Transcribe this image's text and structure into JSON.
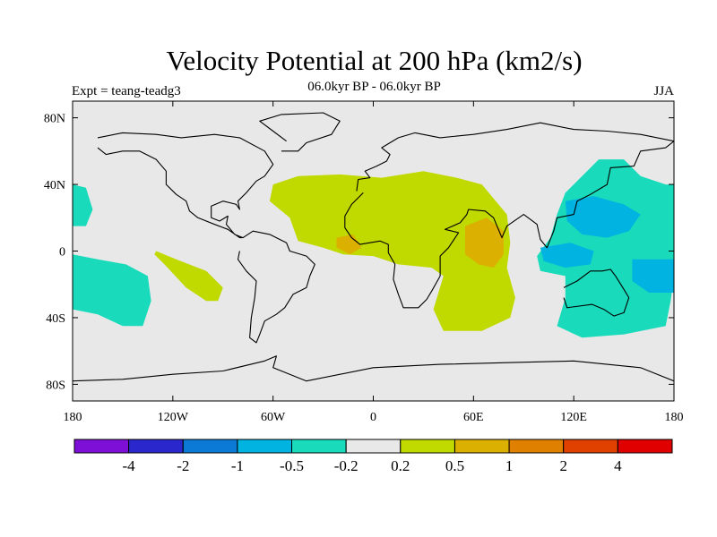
{
  "header": {
    "title": "Velocity Potential at 200 hPa (km2/s)",
    "subtitle": "06.0kyr BP - 06.0kyr BP",
    "experiment": "Expt = teang-teadg3",
    "season": "JJA"
  },
  "chart_data": {
    "type": "contour-map",
    "title": "Velocity Potential at 200 hPa (km2/s)",
    "subtitle": "06.0kyr BP - 06.0kyr BP",
    "xlim": [
      -180,
      180
    ],
    "ylim": [
      -90,
      90
    ],
    "x_ticks": [
      {
        "value": -180,
        "label": "180"
      },
      {
        "value": -120,
        "label": "120W"
      },
      {
        "value": -60,
        "label": "60W"
      },
      {
        "value": 0,
        "label": "0"
      },
      {
        "value": 60,
        "label": "60E"
      },
      {
        "value": 120,
        "label": "120E"
      },
      {
        "value": 180,
        "label": "180"
      }
    ],
    "y_ticks": [
      {
        "value": 80,
        "label": "80N"
      },
      {
        "value": 40,
        "label": "40N"
      },
      {
        "value": 0,
        "label": "0"
      },
      {
        "value": -40,
        "label": "40S"
      },
      {
        "value": -80,
        "label": "80S"
      }
    ],
    "colorbar": {
      "colors": [
        "#7d0fd6",
        "#2a28cc",
        "#0a7ad6",
        "#00b3e0",
        "#19dbbb",
        "#e8e8e8",
        "#c0da00",
        "#dcb000",
        "#e08000",
        "#e04000",
        "#e00000"
      ],
      "labels": [
        "-4",
        "-2",
        "-1",
        "-0.5",
        "-0.2",
        "0.2",
        "0.5",
        "1",
        "2",
        "4"
      ]
    },
    "regions": [
      {
        "level": "0.2 to 0.5",
        "color": "#c0da00",
        "points": [
          [
            -60,
            40
          ],
          [
            -45,
            45
          ],
          [
            -20,
            46
          ],
          [
            5,
            44
          ],
          [
            30,
            48
          ],
          [
            50,
            44
          ],
          [
            65,
            40
          ],
          [
            80,
            22
          ],
          [
            82,
            5
          ],
          [
            80,
            -10
          ],
          [
            85,
            -28
          ],
          [
            82,
            -40
          ],
          [
            65,
            -48
          ],
          [
            42,
            -48
          ],
          [
            36,
            -35
          ],
          [
            42,
            -15
          ],
          [
            35,
            -10
          ],
          [
            15,
            -8
          ],
          [
            0,
            -3
          ],
          [
            -18,
            -2
          ],
          [
            -30,
            2
          ],
          [
            -45,
            6
          ],
          [
            -50,
            20
          ],
          [
            -62,
            30
          ]
        ]
      },
      {
        "level": "0.2 to 0.5",
        "color": "#c0da00",
        "points": [
          [
            -130,
            0
          ],
          [
            -118,
            -5
          ],
          [
            -100,
            -12
          ],
          [
            -90,
            -22
          ],
          [
            -93,
            -30
          ],
          [
            -100,
            -30
          ],
          [
            -112,
            -22
          ],
          [
            -125,
            -8
          ],
          [
            -131,
            -2
          ]
        ]
      },
      {
        "level": "0.5 to 1",
        "color": "#dcb000",
        "points": [
          [
            55,
            15
          ],
          [
            68,
            20
          ],
          [
            78,
            12
          ],
          [
            78,
            -2
          ],
          [
            72,
            -10
          ],
          [
            63,
            -8
          ],
          [
            55,
            -2
          ],
          [
            55,
            8
          ]
        ]
      },
      {
        "level": "0.5 to 1",
        "color": "#dcb000",
        "points": [
          [
            -22,
            8
          ],
          [
            -12,
            10
          ],
          [
            -7,
            2
          ],
          [
            -14,
            -2
          ],
          [
            -22,
            2
          ]
        ]
      },
      {
        "level": "-0.5 to -0.2",
        "color": "#19dbbb",
        "points": [
          [
            -180,
            -2
          ],
          [
            -165,
            -5
          ],
          [
            -148,
            -8
          ],
          [
            -135,
            -15
          ],
          [
            -133,
            -30
          ],
          [
            -138,
            -45
          ],
          [
            -150,
            -45
          ],
          [
            -165,
            -38
          ],
          [
            -180,
            -35
          ]
        ]
      },
      {
        "level": "-0.5 to -0.2",
        "color": "#19dbbb",
        "points": [
          [
            -180,
            40
          ],
          [
            -172,
            38
          ],
          [
            -168,
            25
          ],
          [
            -172,
            15
          ],
          [
            -180,
            15
          ]
        ]
      },
      {
        "level": "-0.5 to -0.2",
        "color": "#19dbbb",
        "points": [
          [
            135,
            55
          ],
          [
            150,
            55
          ],
          [
            160,
            45
          ],
          [
            175,
            40
          ],
          [
            180,
            40
          ],
          [
            180,
            -15
          ],
          [
            178,
            -30
          ],
          [
            175,
            -45
          ],
          [
            150,
            -50
          ],
          [
            125,
            -52
          ],
          [
            110,
            -45
          ],
          [
            115,
            -28
          ],
          [
            115,
            -15
          ],
          [
            100,
            -12
          ],
          [
            98,
            -3
          ],
          [
            106,
            8
          ],
          [
            110,
            22
          ],
          [
            115,
            35
          ],
          [
            125,
            45
          ]
        ]
      },
      {
        "level": "-1 to -0.5",
        "color": "#00b3e0",
        "points": [
          [
            115,
            30
          ],
          [
            132,
            33
          ],
          [
            150,
            28
          ],
          [
            160,
            22
          ],
          [
            153,
            12
          ],
          [
            140,
            8
          ],
          [
            125,
            10
          ],
          [
            116,
            18
          ]
        ]
      },
      {
        "level": "-1 to -0.5",
        "color": "#00b3e0",
        "points": [
          [
            100,
            2
          ],
          [
            118,
            5
          ],
          [
            132,
            0
          ],
          [
            130,
            -8
          ],
          [
            115,
            -10
          ],
          [
            102,
            -6
          ]
        ]
      },
      {
        "level": "-1 to -0.5",
        "color": "#00b3e0",
        "points": [
          [
            155,
            -5
          ],
          [
            180,
            -5
          ],
          [
            180,
            -25
          ],
          [
            165,
            -25
          ],
          [
            155,
            -18
          ]
        ]
      }
    ],
    "coastlines": [
      {
        "name": "north-america",
        "points": [
          [
            -165,
            68
          ],
          [
            -150,
            71
          ],
          [
            -130,
            70
          ],
          [
            -115,
            68
          ],
          [
            -95,
            70
          ],
          [
            -80,
            68
          ],
          [
            -65,
            60
          ],
          [
            -60,
            52
          ],
          [
            -65,
            45
          ],
          [
            -70,
            42
          ],
          [
            -76,
            35
          ],
          [
            -81,
            30
          ],
          [
            -80,
            25
          ],
          [
            -82,
            28
          ],
          [
            -90,
            30
          ],
          [
            -97,
            27
          ],
          [
            -97,
            20
          ],
          [
            -92,
            18
          ],
          [
            -87,
            21
          ],
          [
            -88,
            16
          ],
          [
            -83,
            10
          ],
          [
            -78,
            8
          ],
          [
            -80,
            8
          ],
          [
            -87,
            13
          ],
          [
            -95,
            16
          ],
          [
            -105,
            20
          ],
          [
            -110,
            24
          ],
          [
            -112,
            30
          ],
          [
            -118,
            34
          ],
          [
            -124,
            40
          ],
          [
            -124,
            48
          ],
          [
            -130,
            55
          ],
          [
            -140,
            60
          ],
          [
            -150,
            60
          ],
          [
            -160,
            58
          ],
          [
            -165,
            62
          ]
        ]
      },
      {
        "name": "greenland",
        "points": [
          [
            -55,
            60
          ],
          [
            -45,
            60
          ],
          [
            -40,
            65
          ],
          [
            -25,
            70
          ],
          [
            -20,
            78
          ],
          [
            -30,
            83
          ],
          [
            -55,
            82
          ],
          [
            -68,
            78
          ],
          [
            -60,
            72
          ],
          [
            -52,
            66
          ]
        ]
      },
      {
        "name": "south-america",
        "points": [
          [
            -78,
            8
          ],
          [
            -72,
            12
          ],
          [
            -62,
            10
          ],
          [
            -52,
            5
          ],
          [
            -50,
            0
          ],
          [
            -40,
            -3
          ],
          [
            -35,
            -8
          ],
          [
            -38,
            -15
          ],
          [
            -40,
            -22
          ],
          [
            -48,
            -26
          ],
          [
            -53,
            -34
          ],
          [
            -58,
            -38
          ],
          [
            -65,
            -42
          ],
          [
            -68,
            -50
          ],
          [
            -70,
            -55
          ],
          [
            -74,
            -52
          ],
          [
            -73,
            -40
          ],
          [
            -71,
            -28
          ],
          [
            -70,
            -18
          ],
          [
            -76,
            -12
          ],
          [
            -81,
            -5
          ],
          [
            -80,
            0
          ]
        ]
      },
      {
        "name": "eurasia-africa",
        "points": [
          [
            -10,
            36
          ],
          [
            -9,
            43
          ],
          [
            -2,
            44
          ],
          [
            -5,
            48
          ],
          [
            2,
            51
          ],
          [
            8,
            54
          ],
          [
            10,
            58
          ],
          [
            5,
            62
          ],
          [
            15,
            68
          ],
          [
            25,
            71
          ],
          [
            40,
            68
          ],
          [
            60,
            70
          ],
          [
            80,
            73
          ],
          [
            100,
            77
          ],
          [
            120,
            73
          ],
          [
            140,
            72
          ],
          [
            160,
            70
          ],
          [
            180,
            66
          ],
          [
            175,
            62
          ],
          [
            160,
            60
          ],
          [
            156,
            51
          ],
          [
            142,
            50
          ],
          [
            140,
            40
          ],
          [
            130,
            34
          ],
          [
            122,
            30
          ],
          [
            120,
            22
          ],
          [
            110,
            20
          ],
          [
            108,
            12
          ],
          [
            104,
            2
          ],
          [
            100,
            7
          ],
          [
            98,
            16
          ],
          [
            90,
            22
          ],
          [
            80,
            15
          ],
          [
            77,
            8
          ],
          [
            72,
            20
          ],
          [
            67,
            24
          ],
          [
            57,
            25
          ],
          [
            56,
            22
          ],
          [
            52,
            17
          ],
          [
            43,
            13
          ],
          [
            51,
            11
          ],
          [
            45,
            2
          ],
          [
            40,
            -3
          ],
          [
            40,
            -15
          ],
          [
            35,
            -24
          ],
          [
            32,
            -29
          ],
          [
            27,
            -34
          ],
          [
            18,
            -34
          ],
          [
            15,
            -26
          ],
          [
            12,
            -17
          ],
          [
            13,
            -8
          ],
          [
            9,
            -1
          ],
          [
            9,
            4
          ],
          [
            4,
            6
          ],
          [
            -8,
            4
          ],
          [
            -13,
            8
          ],
          [
            -17,
            14
          ],
          [
            -17,
            21
          ],
          [
            -13,
            28
          ],
          [
            -6,
            35
          ]
        ]
      },
      {
        "name": "australia",
        "points": [
          [
            114,
            -22
          ],
          [
            122,
            -18
          ],
          [
            130,
            -12
          ],
          [
            137,
            -12
          ],
          [
            142,
            -11
          ],
          [
            145,
            -15
          ],
          [
            150,
            -23
          ],
          [
            153,
            -28
          ],
          [
            150,
            -37
          ],
          [
            144,
            -39
          ],
          [
            138,
            -35
          ],
          [
            131,
            -32
          ],
          [
            116,
            -34
          ],
          [
            114,
            -28
          ]
        ]
      },
      {
        "name": "antarctica",
        "points": [
          [
            -180,
            -78
          ],
          [
            -150,
            -77
          ],
          [
            -120,
            -74
          ],
          [
            -90,
            -72
          ],
          [
            -65,
            -66
          ],
          [
            -58,
            -63
          ],
          [
            -60,
            -70
          ],
          [
            -40,
            -78
          ],
          [
            0,
            -70
          ],
          [
            40,
            -68
          ],
          [
            80,
            -67
          ],
          [
            120,
            -66
          ],
          [
            160,
            -70
          ],
          [
            180,
            -78
          ]
        ]
      }
    ]
  }
}
